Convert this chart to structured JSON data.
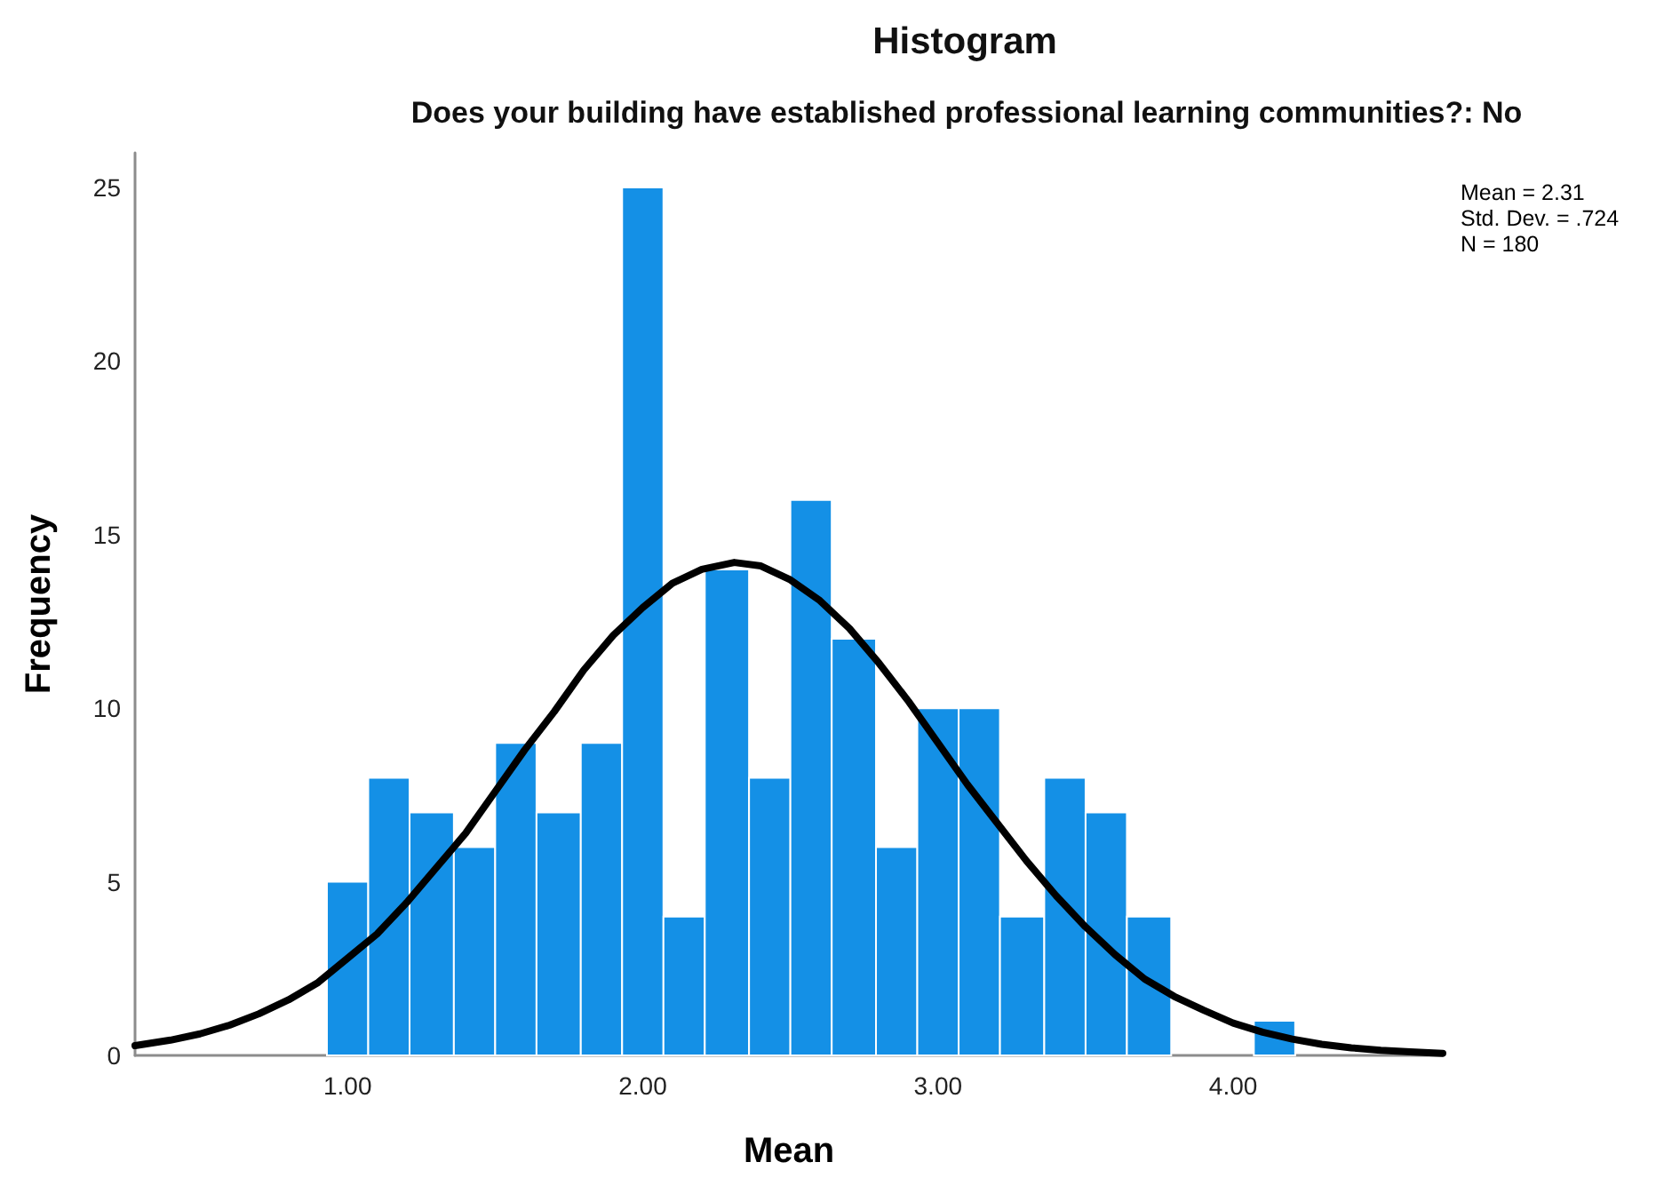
{
  "chart_data": {
    "type": "histogram",
    "title": "Histogram",
    "subtitle": "Does your building have established professional learning communities?: No",
    "xlabel": "Mean",
    "ylabel": "Frequency",
    "annotations": [
      "Mean = 2.31",
      "Std. Dev. = .724",
      "N = 180"
    ],
    "series": [
      {
        "type": "histogram",
        "color": "#1490e6",
        "bins": [
          0.93,
          1.07,
          1.21,
          1.36,
          1.5,
          1.64,
          1.79,
          1.93,
          2.07,
          2.21,
          2.36,
          2.5,
          2.64,
          2.79,
          2.93,
          3.07,
          3.21,
          3.36,
          3.5,
          3.64,
          3.79,
          4.07,
          4.21
        ],
        "values": [
          5,
          8,
          7,
          6,
          9,
          7,
          9,
          25,
          4,
          14,
          8,
          16,
          12,
          6,
          10,
          10,
          4,
          8,
          7,
          4,
          0,
          1
        ]
      },
      {
        "type": "line",
        "color": "#000000",
        "marker": "none",
        "x": [
          0.28,
          0.4,
          0.5,
          0.6,
          0.7,
          0.8,
          0.9,
          1,
          1.1,
          1.2,
          1.3,
          1.4,
          1.5,
          1.6,
          1.7,
          1.8,
          1.9,
          2,
          2.1,
          2.2,
          2.31,
          2.4,
          2.5,
          2.6,
          2.7,
          2.8,
          2.9,
          3,
          3.1,
          3.2,
          3.3,
          3.4,
          3.5,
          3.6,
          3.7,
          3.8,
          3.9,
          4,
          4.1,
          4.2,
          4.3,
          4.4,
          4.5,
          4.6,
          4.71
        ],
        "values": [
          0.28,
          0.44,
          0.62,
          0.87,
          1.2,
          1.6,
          2.1,
          2.8,
          3.5,
          4.4,
          5.4,
          6.4,
          7.6,
          8.8,
          9.9,
          11.1,
          12.1,
          12.9,
          13.6,
          14,
          14.2,
          14.1,
          13.7,
          13.1,
          12.3,
          11.3,
          10.2,
          9,
          7.8,
          6.7,
          5.6,
          4.6,
          3.7,
          2.9,
          2.2,
          1.7,
          1.3,
          0.93,
          0.67,
          0.47,
          0.32,
          0.22,
          0.15,
          0.1,
          0.06
        ]
      }
    ],
    "xlim": [
      0.28,
      4.71
    ],
    "xticks": [
      {
        "value": 1,
        "label": "1.00"
      },
      {
        "value": 2,
        "label": "2.00"
      },
      {
        "value": 3,
        "label": "3.00"
      },
      {
        "value": 4,
        "label": "4.00"
      }
    ],
    "ylim": [
      0,
      26
    ],
    "yticks": [
      0,
      5,
      10,
      15,
      20,
      25
    ],
    "grid": false
  }
}
